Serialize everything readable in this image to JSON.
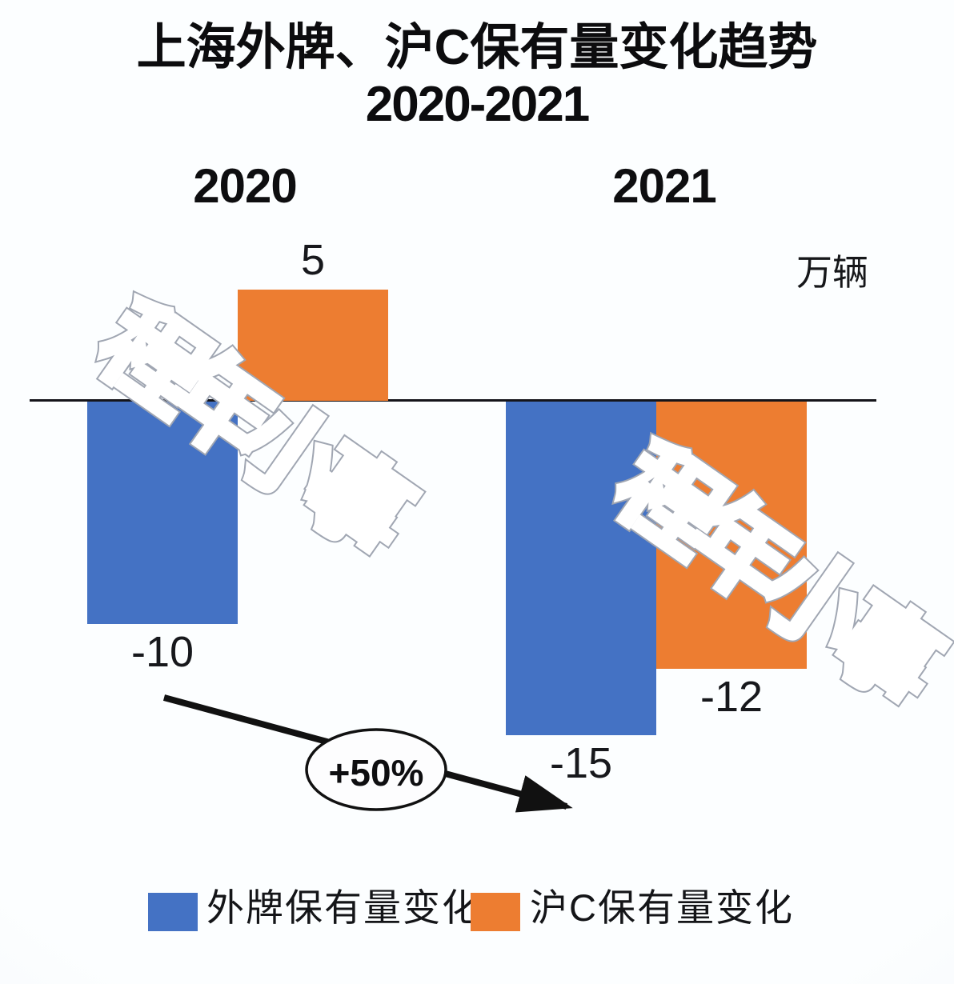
{
  "title": {
    "line1": "上海外牌、沪C保有量变化趋势",
    "line2": "2020-2021"
  },
  "unit_label": "万辆",
  "chart_data": {
    "type": "bar",
    "categories": [
      "2020",
      "2021"
    ],
    "series": [
      {
        "name": "外牌保有量变化",
        "color": "#4472C4",
        "values": [
          -10,
          -15
        ]
      },
      {
        "name": "沪C保有量变化",
        "color": "#ED7D31",
        "values": [
          5,
          -12
        ]
      }
    ],
    "value_labels": [
      [
        "-10",
        "-15"
      ],
      [
        "5",
        "-12"
      ]
    ],
    "unit": "万辆",
    "title": "上海外牌、沪C保有量变化趋势 2020-2021",
    "ylim": [
      -16,
      6
    ],
    "zero_line": true,
    "grid": false,
    "legend_position": "bottom",
    "annotation": {
      "text": "+50%",
      "from_category": "2020",
      "to_category": "2021"
    }
  },
  "annotation": {
    "label": "+50%"
  },
  "legend": {
    "items": [
      {
        "label": "外牌保有量变化",
        "color": "#4472C4"
      },
      {
        "label": "沪C保有量变化",
        "color": "#ED7D31"
      }
    ]
  },
  "watermark": {
    "text": "程年小事"
  },
  "colors": {
    "blue": "#4472C4",
    "orange": "#ED7D31",
    "axis": "#15151a",
    "arrow": "#111111",
    "watermark_outer": "#9fa5b0",
    "watermark_inner": "#ffffff"
  }
}
